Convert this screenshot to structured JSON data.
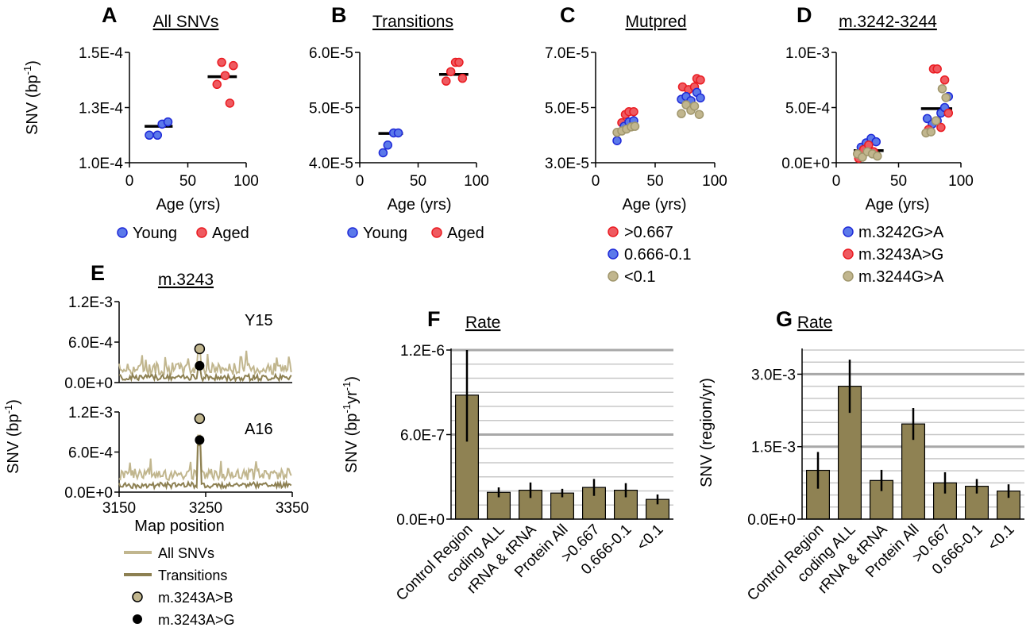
{
  "colors": {
    "young": "#5b79ea",
    "aged": "#ef5a60",
    "tan": "#c1b68e",
    "olive": "#8d8052",
    "bar": "#8f8253",
    "marker_edge_blue": "#1f2ad8",
    "marker_edge_red": "#ea1c22",
    "marker_edge_tan": "#a0966c"
  },
  "panels": {
    "A": {
      "letter": "A",
      "title": "All SNVs"
    },
    "B": {
      "letter": "B",
      "title": "Transitions"
    },
    "C": {
      "letter": "C",
      "title": "Mutpred"
    },
    "D": {
      "letter": "D",
      "title": "m.3242-3244"
    },
    "E": {
      "letter": "E",
      "title": "m.3243",
      "label_top": "Y15",
      "label_bottom": "A16"
    },
    "F": {
      "letter": "F",
      "title": "Rate"
    },
    "G": {
      "letter": "G",
      "title": "Rate"
    }
  },
  "axis_text": {
    "snv_bp": "SNV (bp",
    "snv_bp_sup": "-1",
    "snv_close": ")",
    "age": "Age (yrs)",
    "map_position": "Map position",
    "snv_rate_pre": "SNV (bp",
    "snv_rate_sup1": "-1",
    "snv_rate_mid": "yr",
    "snv_rate_sup2": "-1",
    "snv_rate_post": ")",
    "snv_region": "SNV (region/yr)"
  },
  "legends": {
    "young_aged": [
      "Young",
      "Aged"
    ],
    "mutpred": [
      ">0.667",
      "0.666-0.1",
      "<0.1"
    ],
    "m3242": [
      "m.3242G>A",
      "m.3243A>G",
      "m.3244G>A"
    ],
    "e_items": [
      "All SNVs",
      "Transitions",
      "m.3243A>B",
      "m.3243A>G"
    ]
  },
  "chart_data": [
    {
      "panel": "A",
      "type": "scatter",
      "xlim": [
        0,
        100
      ],
      "xticks": [
        "0",
        "50",
        "100"
      ],
      "ylim": [
        0.0001,
        0.00015
      ],
      "yticks": [
        "1.0E-4",
        "1.3E-4",
        "1.5E-4"
      ],
      "series": [
        {
          "name": "Young",
          "x": [
            17,
            24,
            28,
            33
          ],
          "y": [
            0.0001125,
            0.0001125,
            0.0001175,
            0.0001185
          ]
        },
        {
          "name": "Aged",
          "x": [
            75,
            79,
            82,
            86,
            89
          ],
          "y": [
            0.0001355,
            0.0001455,
            0.0001395,
            0.000127,
            0.000144
          ]
        }
      ],
      "medians": [
        {
          "x": [
            13,
            37
          ],
          "y": 0.0001165
        },
        {
          "x": [
            67,
            92
          ],
          "y": 0.000139
        }
      ]
    },
    {
      "panel": "B",
      "type": "scatter",
      "xlim": [
        0,
        100
      ],
      "xticks": [
        "0",
        "50",
        "100"
      ],
      "ylim": [
        4e-05,
        6e-05
      ],
      "yticks": [
        "4.0E-5",
        "5.0E-5",
        "6.0E-5"
      ],
      "series": [
        {
          "name": "Young",
          "x": [
            20,
            24,
            29,
            33
          ],
          "y": [
            4.18e-05,
            4.32e-05,
            4.54e-05,
            4.54e-05
          ]
        },
        {
          "name": "Aged",
          "x": [
            74,
            78,
            82,
            85,
            88
          ],
          "y": [
            5.48e-05,
            5.65e-05,
            5.82e-05,
            5.82e-05,
            5.53e-05
          ]
        }
      ],
      "medians": [
        {
          "x": [
            16,
            37
          ],
          "y": 4.53e-05
        },
        {
          "x": [
            68,
            93
          ],
          "y": 5.6e-05
        }
      ]
    },
    {
      "panel": "C",
      "type": "scatter",
      "xlim": [
        0,
        100
      ],
      "xticks": [
        "0",
        "50",
        "100"
      ],
      "ylim": [
        3e-05,
        7e-05
      ],
      "yticks": [
        "3.0E-5",
        "5.0E-5",
        "7.0E-5"
      ],
      "series": [
        {
          "name": ">0.667",
          "x": [
            22,
            25,
            28,
            32,
            73,
            78,
            83,
            85,
            88
          ],
          "y": [
            4.45e-05,
            4.75e-05,
            4.85e-05,
            4.85e-05,
            5.75e-05,
            5.65e-05,
            5.75e-05,
            6.05e-05,
            6e-05
          ]
        },
        {
          "name": "0.666-0.1",
          "x": [
            18,
            24,
            28,
            32,
            72,
            76,
            80,
            85,
            88
          ],
          "y": [
            3.8e-05,
            4.32e-05,
            4.48e-05,
            4.52e-05,
            5.3e-05,
            5.4e-05,
            5.25e-05,
            5.55e-05,
            5.35e-05
          ]
        },
        {
          "name": "<0.1",
          "x": [
            18,
            22,
            26,
            30,
            33,
            72,
            76,
            80,
            83,
            87
          ],
          "y": [
            4.1e-05,
            4.15e-05,
            4.22e-05,
            4.3e-05,
            4.32e-05,
            4.78e-05,
            5.1e-05,
            4.9e-05,
            5.05e-05,
            4.75e-05
          ]
        }
      ]
    },
    {
      "panel": "D",
      "type": "scatter",
      "xlim": [
        0,
        100
      ],
      "xticks": [
        "0",
        "50",
        "100"
      ],
      "ylim": [
        0,
        0.001
      ],
      "yticks": [
        "0.0E+0",
        "5.0E-4",
        "1.0E-3"
      ],
      "series": [
        {
          "name": "m.3242G>A",
          "x": [
            20,
            24,
            28,
            32,
            73,
            77,
            81,
            84,
            87,
            90
          ],
          "y": [
            0.00014,
            0.00018,
            0.00022,
            0.00019,
            0.0004,
            0.00035,
            0.00038,
            0.00045,
            0.0005,
            0.0006
          ]
        },
        {
          "name": "m.3243A>G",
          "x": [
            18,
            22,
            26,
            30,
            74,
            78,
            81,
            84,
            87,
            90
          ],
          "y": [
            4e-05,
            0.00012,
            0.00016,
            0.0001,
            0.0003,
            0.00085,
            0.00085,
            0.00032,
            0.00075,
            0.00045
          ]
        },
        {
          "name": "m.3244G>A",
          "x": [
            17,
            21,
            25,
            29,
            33,
            72,
            76,
            80,
            85,
            88
          ],
          "y": [
            8e-05,
            5e-05,
            0.0001,
            8e-05,
            6e-05,
            0.00027,
            0.00028,
            0.00038,
            0.00067,
            0.00059
          ]
        }
      ],
      "medians": [
        {
          "x": [
            14,
            38
          ],
          "y": 0.00011
        },
        {
          "x": [
            68,
            93
          ],
          "y": 0.00049
        }
      ]
    },
    {
      "panel": "E",
      "type": "line",
      "xlim": [
        3150,
        3350
      ],
      "xticks": [
        "3150",
        "3250",
        "3350"
      ],
      "ylim": [
        0,
        0.0012
      ],
      "yticks": [
        "0.0E+0",
        "6.0E-4",
        "1.2E-3"
      ],
      "subplots": [
        "Y15",
        "A16"
      ],
      "series": [
        "All SNVs",
        "Transitions"
      ],
      "markers": [
        {
          "subplot": "Y15",
          "name": "m.3243A>B",
          "x": 3243,
          "y": 0.0005
        },
        {
          "subplot": "Y15",
          "name": "m.3243A>G",
          "x": 3243,
          "y": 0.00025
        },
        {
          "subplot": "A16",
          "name": "m.3243A>B",
          "x": 3243,
          "y": 0.0011
        },
        {
          "subplot": "A16",
          "name": "m.3243A>G",
          "x": 3243,
          "y": 0.00078
        }
      ]
    },
    {
      "panel": "F",
      "type": "bar",
      "categories": [
        "Control Region",
        "coding ALL",
        "rRNA & tRNA",
        "Protein All",
        ">0.667",
        "0.666-0.1",
        "<0.1"
      ],
      "values": [
        8.8e-07,
        1.9e-07,
        2.05e-07,
        1.85e-07,
        2.25e-07,
        2.05e-07,
        1.4e-07
      ],
      "errors": [
        3.3e-07,
        3.5e-08,
        5.5e-08,
        3e-08,
        6e-08,
        5e-08,
        3.5e-08
      ],
      "ylim": [
        0,
        1.2e-06
      ],
      "yticks": [
        "0.0E+0",
        "6.0E-7",
        "1.2E-6"
      ]
    },
    {
      "panel": "G",
      "type": "bar",
      "categories": [
        "Control Region",
        "coding ALL",
        "rRNA & tRNA",
        "Protein All",
        ">0.667",
        "0.666-0.1",
        "<0.1"
      ],
      "values": [
        0.00101,
        0.00275,
        0.0008,
        0.00197,
        0.00075,
        0.00068,
        0.00058
      ],
      "errors": [
        0.00038,
        0.00055,
        0.00022,
        0.00033,
        0.00022,
        0.00015,
        0.00014
      ],
      "ylim": [
        0,
        0.0035
      ],
      "yticks": [
        "0.0E+0",
        "1.5E-3",
        "3.0E-3"
      ]
    }
  ]
}
